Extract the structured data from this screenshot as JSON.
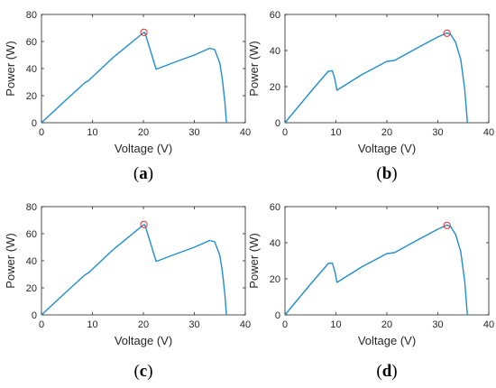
{
  "chart_data": [
    {
      "panel": "(a)",
      "panel_letter": "a",
      "type": "line",
      "xlabel": "Voltage (V)",
      "ylabel": "Power (W)",
      "xlim": [
        0,
        40
      ],
      "ylim": [
        0,
        80
      ],
      "xticks": [
        0,
        10,
        20,
        30,
        40
      ],
      "yticks": [
        0,
        20,
        40,
        60,
        80
      ],
      "grid": false,
      "line_color": "#1f8fce",
      "marker_color": "#e03030",
      "x": [
        0,
        4,
        8.5,
        9.2,
        14,
        20,
        20.3,
        21,
        22.5,
        26,
        30,
        33,
        34,
        35,
        35.5,
        36,
        36.3
      ],
      "y": [
        0,
        14,
        29.5,
        31,
        48,
        66.5,
        66.5,
        58,
        39.5,
        44.5,
        50,
        55,
        54,
        44,
        32,
        15,
        0
      ],
      "marker": {
        "x": 20.1,
        "y": 66.8
      }
    },
    {
      "panel": "(b)",
      "panel_letter": "b",
      "type": "line",
      "xlabel": "Voltage (V)",
      "ylabel": "Power (W)",
      "xlim": [
        0,
        40
      ],
      "ylim": [
        0,
        60
      ],
      "xticks": [
        0,
        10,
        20,
        30,
        40
      ],
      "yticks": [
        0,
        20,
        40,
        60
      ],
      "grid": false,
      "line_color": "#1f8fce",
      "marker_color": "#e03030",
      "x": [
        0,
        5,
        8.5,
        9.3,
        9.8,
        10.2,
        15,
        20,
        21.5,
        26,
        30,
        31.8,
        32.5,
        33.5,
        34.5,
        35.3,
        35.8
      ],
      "y": [
        0,
        17,
        28.5,
        28.8,
        24,
        18,
        26.5,
        34,
        34.5,
        41.5,
        47.5,
        49.8,
        49,
        44.5,
        35,
        18,
        0
      ],
      "marker": {
        "x": 31.8,
        "y": 49.6
      }
    },
    {
      "panel": "(c)",
      "panel_letter": "c",
      "type": "line",
      "xlabel": "Voltage (V)",
      "ylabel": "Power (W)",
      "xlim": [
        0,
        40
      ],
      "ylim": [
        0,
        80
      ],
      "xticks": [
        0,
        10,
        20,
        30,
        40
      ],
      "yticks": [
        0,
        20,
        40,
        60,
        80
      ],
      "grid": false,
      "line_color": "#1f8fce",
      "marker_color": "#e03030",
      "x": [
        0,
        4,
        8.5,
        9.2,
        14,
        20,
        20.3,
        21,
        22.5,
        26,
        30,
        33,
        34,
        35,
        35.5,
        36,
        36.3
      ],
      "y": [
        0,
        14,
        29.5,
        31,
        48,
        66.5,
        66.5,
        58,
        39.5,
        44.5,
        50,
        55,
        54,
        44,
        32,
        15,
        0
      ],
      "marker": {
        "x": 20.1,
        "y": 66.8
      }
    },
    {
      "panel": "(d)",
      "panel_letter": "d",
      "type": "line",
      "xlabel": "Voltage (V)",
      "ylabel": "Power (W)",
      "xlim": [
        0,
        40
      ],
      "ylim": [
        0,
        60
      ],
      "xticks": [
        0,
        10,
        20,
        30,
        40
      ],
      "yticks": [
        0,
        20,
        40,
        60
      ],
      "grid": false,
      "line_color": "#1f8fce",
      "marker_color": "#e03030",
      "x": [
        0,
        5,
        8.5,
        9.3,
        9.8,
        10.2,
        15,
        20,
        21.5,
        26,
        30,
        31.8,
        32.5,
        33.5,
        34.5,
        35.3,
        35.8
      ],
      "y": [
        0,
        17,
        28.5,
        28.8,
        24,
        18,
        26.5,
        34,
        34.5,
        41.5,
        47.5,
        49.8,
        49,
        44.5,
        35,
        18,
        0
      ],
      "marker": {
        "x": 31.8,
        "y": 49.6
      }
    }
  ]
}
